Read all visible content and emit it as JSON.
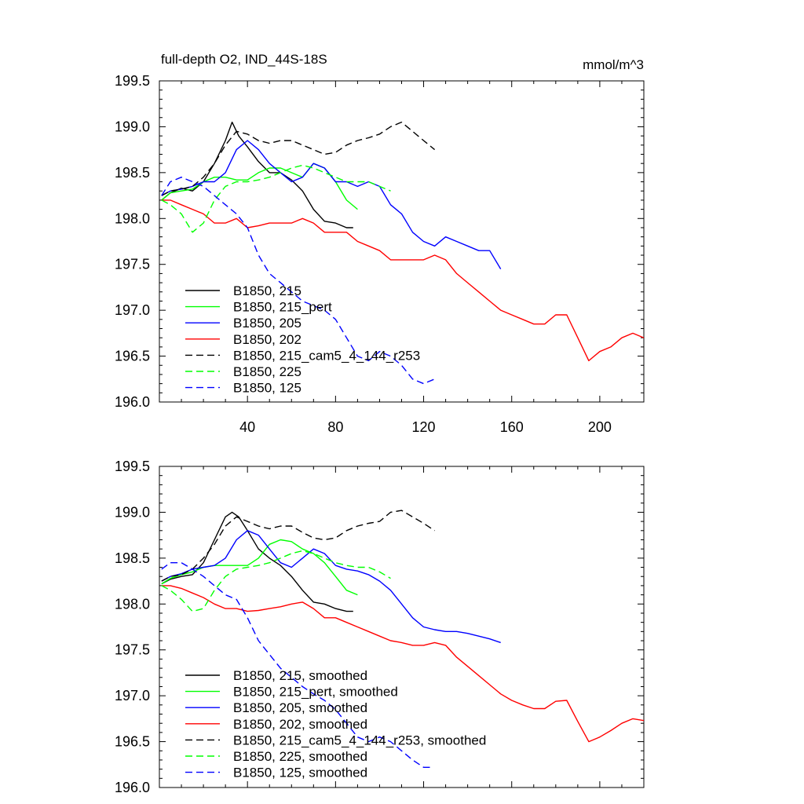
{
  "chart_data": [
    {
      "type": "line",
      "title": "full-depth O2, IND_44S-18S",
      "units": "mmol/m^3",
      "xlabel": "",
      "ylabel": "",
      "xlim": [
        0,
        220
      ],
      "ylim": [
        196.0,
        199.5
      ],
      "xticks": [
        40,
        80,
        120,
        160,
        200
      ],
      "yticks": [
        196.0,
        196.5,
        197.0,
        197.5,
        198.0,
        198.5,
        199.0,
        199.5
      ],
      "x_tick_labels_shown": true,
      "grid": false,
      "legend_position": "bottom-left",
      "series": [
        {
          "name": "B1850, 215",
          "color": "#000000",
          "dash": "solid",
          "x": [
            1,
            5,
            10,
            15,
            20,
            25,
            30,
            33,
            36,
            40,
            45,
            50,
            55,
            60,
            65,
            70,
            75,
            80,
            85,
            88
          ],
          "y": [
            198.2,
            198.28,
            198.33,
            198.3,
            198.4,
            198.6,
            198.85,
            199.05,
            198.9,
            198.78,
            198.62,
            198.5,
            198.5,
            198.42,
            198.3,
            198.1,
            197.97,
            197.95,
            197.9,
            197.9
          ]
        },
        {
          "name": "B1850, 215_pert",
          "color": "#00ff00",
          "dash": "solid",
          "x": [
            1,
            5,
            10,
            15,
            20,
            25,
            30,
            35,
            40,
            45,
            50,
            55,
            60,
            65,
            70,
            75,
            80,
            85,
            90
          ],
          "y": [
            198.2,
            198.28,
            198.3,
            198.32,
            198.4,
            198.45,
            198.45,
            198.42,
            198.42,
            198.5,
            198.55,
            198.55,
            198.5,
            198.45,
            198.6,
            198.55,
            198.4,
            198.2,
            198.1
          ]
        },
        {
          "name": "B1850, 205",
          "color": "#0000ff",
          "dash": "solid",
          "x": [
            1,
            5,
            10,
            15,
            20,
            25,
            30,
            35,
            40,
            45,
            50,
            55,
            60,
            65,
            70,
            75,
            80,
            85,
            90,
            95,
            100,
            105,
            110,
            115,
            120,
            125,
            130,
            135,
            140,
            145,
            150,
            155
          ],
          "y": [
            198.25,
            198.3,
            198.32,
            198.35,
            198.4,
            198.4,
            198.5,
            198.75,
            198.85,
            198.75,
            198.6,
            198.5,
            198.4,
            198.45,
            198.6,
            198.55,
            198.4,
            198.4,
            198.35,
            198.4,
            198.35,
            198.15,
            198.05,
            197.85,
            197.75,
            197.7,
            197.8,
            197.75,
            197.7,
            197.65,
            197.65,
            197.45
          ]
        },
        {
          "name": "B1850, 202",
          "color": "#ff0000",
          "dash": "solid",
          "x": [
            1,
            5,
            10,
            15,
            20,
            25,
            30,
            35,
            40,
            45,
            50,
            55,
            60,
            65,
            70,
            75,
            80,
            85,
            90,
            95,
            100,
            105,
            110,
            115,
            120,
            125,
            130,
            135,
            140,
            145,
            150,
            155,
            160,
            165,
            170,
            175,
            180,
            185,
            190,
            195,
            200,
            205,
            210,
            215,
            220
          ],
          "y": [
            198.2,
            198.2,
            198.15,
            198.1,
            198.05,
            197.95,
            197.95,
            198.0,
            197.9,
            197.92,
            197.95,
            197.95,
            197.95,
            198.0,
            197.95,
            197.85,
            197.85,
            197.85,
            197.75,
            197.7,
            197.65,
            197.55,
            197.55,
            197.55,
            197.55,
            197.6,
            197.55,
            197.4,
            197.3,
            197.2,
            197.1,
            197.0,
            196.95,
            196.9,
            196.85,
            196.85,
            196.95,
            196.95,
            196.7,
            196.45,
            196.55,
            196.6,
            196.7,
            196.75,
            196.7
          ]
        },
        {
          "name": "B1850, 215_cam5_4_144_r253",
          "color": "#000000",
          "dash": "dashed",
          "x": [
            1,
            5,
            10,
            15,
            20,
            25,
            30,
            35,
            40,
            45,
            50,
            55,
            60,
            65,
            70,
            75,
            80,
            85,
            90,
            95,
            100,
            105,
            110,
            115,
            120,
            125
          ],
          "y": [
            198.25,
            198.3,
            198.32,
            198.35,
            198.45,
            198.6,
            198.8,
            198.95,
            198.92,
            198.85,
            198.82,
            198.85,
            198.85,
            198.8,
            198.75,
            198.7,
            198.72,
            198.8,
            198.85,
            198.88,
            198.92,
            199.0,
            199.05,
            198.95,
            198.85,
            198.75
          ]
        },
        {
          "name": "B1850, 225",
          "color": "#00ff00",
          "dash": "dashed",
          "x": [
            1,
            5,
            10,
            15,
            20,
            25,
            30,
            35,
            40,
            45,
            50,
            55,
            60,
            65,
            70,
            75,
            80,
            85,
            90,
            95,
            100,
            105
          ],
          "y": [
            198.2,
            198.15,
            198.05,
            197.85,
            197.95,
            198.2,
            198.35,
            198.4,
            198.4,
            198.42,
            198.45,
            198.5,
            198.55,
            198.58,
            198.55,
            198.5,
            198.45,
            198.4,
            198.4,
            198.4,
            198.35,
            198.3
          ]
        },
        {
          "name": "B1850, 125",
          "color": "#0000ff",
          "dash": "dashed",
          "x": [
            1,
            5,
            10,
            15,
            20,
            25,
            30,
            35,
            40,
            45,
            50,
            55,
            60,
            65,
            70,
            75,
            80,
            85,
            90,
            95,
            100,
            105,
            110,
            115,
            120,
            125
          ],
          "y": [
            198.25,
            198.4,
            198.45,
            198.4,
            198.35,
            198.25,
            198.15,
            198.05,
            197.9,
            197.6,
            197.4,
            197.3,
            197.2,
            197.1,
            197.05,
            197.0,
            196.9,
            196.7,
            196.5,
            196.45,
            196.55,
            196.5,
            196.4,
            196.25,
            196.2,
            196.25
          ]
        }
      ]
    },
    {
      "type": "line",
      "title": "",
      "units": "",
      "xlabel": "",
      "ylabel": "",
      "xlim": [
        0,
        220
      ],
      "ylim": [
        196.0,
        199.5
      ],
      "xticks": [
        40,
        80,
        120,
        160,
        200
      ],
      "yticks": [
        196.0,
        196.5,
        197.0,
        197.5,
        198.0,
        198.5,
        199.0,
        199.5
      ],
      "x_tick_labels_shown": false,
      "grid": false,
      "legend_position": "bottom-left",
      "series": [
        {
          "name": "B1850, 215, smoothed",
          "color": "#000000",
          "dash": "solid",
          "x": [
            1,
            5,
            10,
            15,
            20,
            25,
            30,
            33,
            36,
            40,
            45,
            50,
            55,
            60,
            65,
            70,
            75,
            80,
            85,
            88
          ],
          "y": [
            198.22,
            198.27,
            198.3,
            198.32,
            198.45,
            198.7,
            198.95,
            199.0,
            198.95,
            198.8,
            198.6,
            198.5,
            198.42,
            198.3,
            198.15,
            198.02,
            198.0,
            197.95,
            197.92,
            197.92
          ]
        },
        {
          "name": "B1850, 215_pert, smoothed",
          "color": "#00ff00",
          "dash": "solid",
          "x": [
            1,
            5,
            10,
            15,
            20,
            25,
            30,
            35,
            40,
            45,
            50,
            55,
            60,
            65,
            70,
            75,
            80,
            85,
            90
          ],
          "y": [
            198.22,
            198.28,
            198.32,
            198.35,
            198.4,
            198.42,
            198.42,
            198.42,
            198.42,
            198.5,
            198.65,
            198.7,
            198.68,
            198.6,
            198.55,
            198.45,
            198.3,
            198.15,
            198.1
          ]
        },
        {
          "name": "B1850, 205, smoothed",
          "color": "#0000ff",
          "dash": "solid",
          "x": [
            1,
            5,
            10,
            15,
            20,
            25,
            30,
            35,
            40,
            45,
            50,
            55,
            60,
            65,
            70,
            75,
            80,
            85,
            90,
            95,
            100,
            105,
            110,
            115,
            120,
            125,
            130,
            135,
            140,
            145,
            150,
            155
          ],
          "y": [
            198.25,
            198.3,
            198.33,
            198.38,
            198.4,
            198.42,
            198.5,
            198.7,
            198.8,
            198.75,
            198.6,
            198.45,
            198.4,
            198.5,
            198.6,
            198.55,
            198.42,
            198.38,
            198.36,
            198.32,
            198.25,
            198.15,
            198.0,
            197.85,
            197.75,
            197.72,
            197.7,
            197.7,
            197.68,
            197.65,
            197.62,
            197.58
          ]
        },
        {
          "name": "B1850, 202, smoothed",
          "color": "#ff0000",
          "dash": "solid",
          "x": [
            1,
            5,
            10,
            15,
            20,
            25,
            30,
            35,
            40,
            45,
            50,
            55,
            60,
            65,
            70,
            75,
            80,
            85,
            90,
            95,
            100,
            105,
            110,
            115,
            120,
            125,
            130,
            135,
            140,
            145,
            150,
            155,
            160,
            165,
            170,
            175,
            180,
            185,
            190,
            195,
            200,
            205,
            210,
            215,
            220
          ],
          "y": [
            198.2,
            198.2,
            198.17,
            198.12,
            198.07,
            198.0,
            197.95,
            197.95,
            197.92,
            197.93,
            197.95,
            197.97,
            198.0,
            198.02,
            197.95,
            197.85,
            197.85,
            197.8,
            197.75,
            197.7,
            197.65,
            197.6,
            197.58,
            197.55,
            197.55,
            197.58,
            197.55,
            197.42,
            197.32,
            197.22,
            197.12,
            197.02,
            196.95,
            196.9,
            196.86,
            196.86,
            196.94,
            196.95,
            196.72,
            196.5,
            196.55,
            196.62,
            196.7,
            196.75,
            196.73
          ]
        },
        {
          "name": "B1850, 215_cam5_4_144_r253, smoothed",
          "color": "#000000",
          "dash": "dashed",
          "x": [
            1,
            5,
            10,
            15,
            20,
            25,
            30,
            35,
            40,
            45,
            50,
            55,
            60,
            65,
            70,
            75,
            80,
            85,
            90,
            95,
            100,
            105,
            110,
            115,
            120,
            125
          ],
          "y": [
            198.25,
            198.3,
            198.32,
            198.38,
            198.5,
            198.65,
            198.85,
            198.95,
            198.9,
            198.85,
            198.82,
            198.85,
            198.85,
            198.78,
            198.72,
            198.7,
            198.72,
            198.8,
            198.85,
            198.88,
            198.9,
            199.0,
            199.02,
            198.95,
            198.88,
            198.8
          ]
        },
        {
          "name": "B1850, 225, smoothed",
          "color": "#00ff00",
          "dash": "dashed",
          "x": [
            1,
            5,
            10,
            15,
            20,
            25,
            30,
            35,
            40,
            45,
            50,
            55,
            60,
            65,
            70,
            75,
            80,
            85,
            90,
            95,
            100,
            105
          ],
          "y": [
            198.2,
            198.15,
            198.05,
            197.92,
            197.95,
            198.15,
            198.3,
            198.38,
            198.4,
            198.42,
            198.45,
            198.5,
            198.55,
            198.58,
            198.55,
            198.5,
            198.45,
            198.42,
            198.4,
            198.4,
            198.35,
            198.28
          ]
        },
        {
          "name": "B1850, 125, smoothed",
          "color": "#0000ff",
          "dash": "dashed",
          "x": [
            1,
            5,
            10,
            15,
            20,
            25,
            30,
            35,
            40,
            45,
            50,
            55,
            60,
            65,
            70,
            75,
            80,
            85,
            90,
            95,
            100,
            105,
            110,
            115,
            120,
            123
          ],
          "y": [
            198.38,
            198.45,
            198.45,
            198.38,
            198.3,
            198.2,
            198.1,
            198.05,
            197.85,
            197.6,
            197.45,
            197.3,
            197.2,
            197.1,
            197.02,
            196.95,
            196.85,
            196.7,
            196.55,
            196.5,
            196.55,
            196.5,
            196.4,
            196.3,
            196.22,
            196.22
          ]
        }
      ]
    }
  ]
}
